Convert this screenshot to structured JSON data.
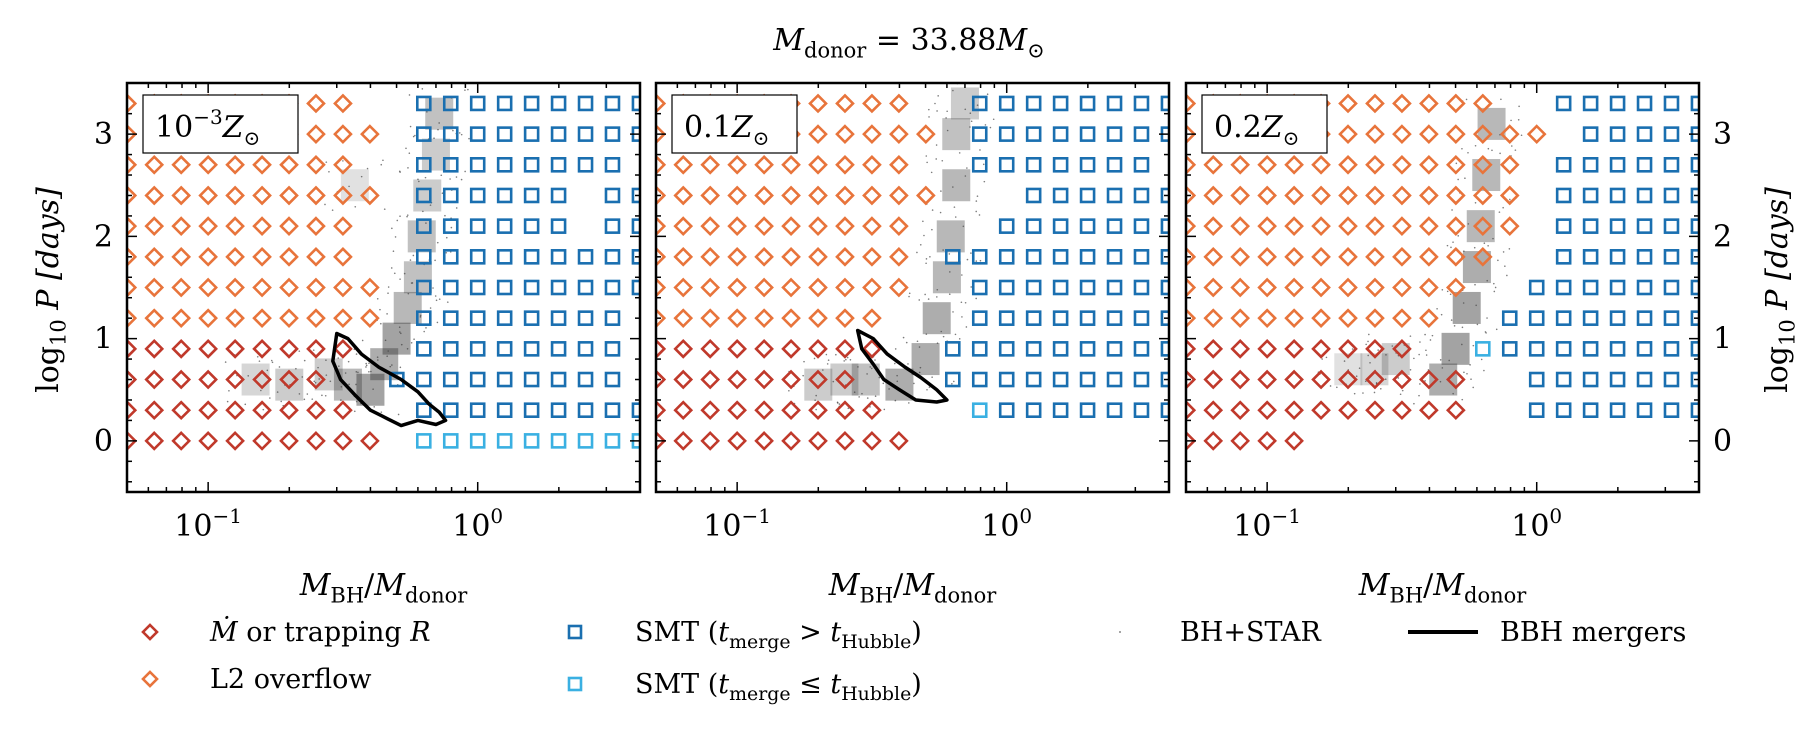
{
  "figure": {
    "title_parts": [
      "M",
      "donor",
      " = 33.88",
      "M",
      "⊙"
    ]
  },
  "axes": {
    "xlabel_parts": [
      "M",
      "BH",
      "/",
      "M",
      "donor"
    ],
    "ylabel_parts": [
      "log",
      "10",
      " P [days]"
    ],
    "x_tick_bases": [
      "10",
      "10"
    ],
    "x_tick_exps": [
      "−1",
      "0"
    ],
    "y_ticks": [
      "0",
      "1",
      "2",
      "3"
    ]
  },
  "colors": {
    "dark_red": "#c0392b",
    "orange": "#e8743b",
    "dark_blue": "#1a6fb0",
    "light_blue": "#3ab0e2",
    "contour": "#000000"
  },
  "legend": {
    "items": [
      {
        "marker": "diamond-dark-red",
        "label_parts": [
          "Ṁ",
          " or trapping ",
          "R"
        ]
      },
      {
        "marker": "diamond-orange",
        "label_parts": [
          "L2 overflow"
        ]
      },
      {
        "marker": "square-dark-blue",
        "label_parts": [
          "SMT (",
          "t",
          "merge",
          " > ",
          "t",
          "Hubble",
          ")"
        ]
      },
      {
        "marker": "square-light-blue",
        "label_parts": [
          "SMT (",
          "t",
          "merge",
          " ≤ ",
          "t",
          "Hubble",
          ")"
        ]
      },
      {
        "marker": "dot-gray",
        "label_parts": [
          "BH+STAR"
        ]
      },
      {
        "marker": "line-black",
        "label_parts": [
          "BBH mergers"
        ]
      }
    ]
  },
  "chart_data": [
    {
      "type": "scatter",
      "panel_label": [
        "10",
        "−3",
        "Z",
        "⊙"
      ],
      "xscale": "log",
      "xlim": [
        0.05,
        4.0
      ],
      "ylim": [
        -0.5,
        3.5
      ],
      "log_q": [
        -1.3,
        -1.2,
        -1.1,
        -1.0,
        -0.9,
        -0.8,
        -0.7,
        -0.6,
        -0.5,
        -0.4,
        -0.3,
        -0.2,
        -0.1,
        0.0,
        0.1,
        0.2,
        0.3,
        0.4,
        0.5,
        0.6
      ],
      "log_p": [
        0.0,
        0.3,
        0.6,
        0.9,
        1.2,
        1.5,
        1.8,
        2.1,
        2.4,
        2.7,
        3.0,
        3.3
      ],
      "grid": [
        "dddddddddd.lllllllll",
        "ddddddddd..sssssssss",
        "dddddddd..sssssssss.",
        "ddddddddd..ssssssss.",
        "oooooooooo.ssssssss.",
        "oooooooooo.sssssssss",
        "ooooooooo..sssssssss",
        "ooooooooo..ssssss.ss",
        "oooooooooo.ssssss.ss",
        "ooooooooo..ssssssss.",
        "oooooooooo.sssssssss",
        "ooooooooo..sssssssss"
      ],
      "bbh_contour": [
        [
          0.3,
          1.05
        ],
        [
          0.33,
          1.0
        ],
        [
          0.37,
          0.85
        ],
        [
          0.43,
          0.72
        ],
        [
          0.52,
          0.6
        ],
        [
          0.6,
          0.48
        ],
        [
          0.66,
          0.36
        ],
        [
          0.72,
          0.28
        ],
        [
          0.76,
          0.2
        ],
        [
          0.7,
          0.16
        ],
        [
          0.6,
          0.2
        ],
        [
          0.52,
          0.15
        ],
        [
          0.46,
          0.22
        ],
        [
          0.4,
          0.3
        ],
        [
          0.35,
          0.45
        ],
        [
          0.31,
          0.6
        ],
        [
          0.29,
          0.78
        ],
        [
          0.3,
          1.05
        ]
      ],
      "density": [
        [
          0.28,
          0.65,
          0.25
        ],
        [
          0.33,
          0.55,
          0.35
        ],
        [
          0.4,
          0.5,
          0.45
        ],
        [
          0.45,
          0.75,
          0.4
        ],
        [
          0.5,
          1.0,
          0.45
        ],
        [
          0.55,
          1.3,
          0.35
        ],
        [
          0.6,
          1.6,
          0.3
        ],
        [
          0.62,
          2.0,
          0.3
        ],
        [
          0.65,
          2.4,
          0.25
        ],
        [
          0.7,
          2.8,
          0.25
        ],
        [
          0.72,
          3.2,
          0.3
        ],
        [
          0.35,
          2.5,
          0.15
        ],
        [
          0.2,
          0.55,
          0.25
        ],
        [
          0.15,
          0.6,
          0.2
        ]
      ]
    },
    {
      "type": "scatter",
      "panel_label": [
        "0.1",
        "",
        "Z",
        "⊙"
      ],
      "xscale": "log",
      "xlim": [
        0.05,
        4.0
      ],
      "ylim": [
        -0.5,
        3.5
      ],
      "log_q": [
        -1.3,
        -1.2,
        -1.1,
        -1.0,
        -0.9,
        -0.8,
        -0.7,
        -0.6,
        -0.5,
        -0.4,
        -0.3,
        -0.2,
        -0.1,
        0.0,
        0.1,
        0.2,
        0.3,
        0.4,
        0.5,
        0.6
      ],
      "log_p": [
        0.0,
        0.3,
        0.6,
        0.9,
        1.2,
        1.5,
        1.8,
        2.1,
        2.4,
        2.7,
        3.0,
        3.3
      ],
      "grid": [
        "dddddddddd..........",
        "ddddddddd...lsssssss",
        "dddddddd...sssssssss",
        "ddddddddd..sssssssss",
        "ooooooooo...ssssssss",
        "oooooooooo..ssssssss",
        "oooooooooo.sssssssss",
        "oooooooooo...sssssss",
        "ooooooooooo...ssssss",
        "oooooooooo..sssssss.",
        "ooooooooooo.ssssssss",
        "oooooooooo..ssssssss"
      ],
      "bbh_contour": [
        [
          0.28,
          1.08
        ],
        [
          0.32,
          1.0
        ],
        [
          0.36,
          0.85
        ],
        [
          0.42,
          0.72
        ],
        [
          0.48,
          0.62
        ],
        [
          0.55,
          0.5
        ],
        [
          0.6,
          0.4
        ],
        [
          0.55,
          0.38
        ],
        [
          0.46,
          0.4
        ],
        [
          0.4,
          0.5
        ],
        [
          0.35,
          0.6
        ],
        [
          0.32,
          0.75
        ],
        [
          0.29,
          0.9
        ],
        [
          0.28,
          1.08
        ]
      ],
      "density": [
        [
          0.3,
          0.6,
          0.3
        ],
        [
          0.4,
          0.55,
          0.4
        ],
        [
          0.5,
          0.8,
          0.4
        ],
        [
          0.55,
          1.2,
          0.4
        ],
        [
          0.6,
          1.6,
          0.35
        ],
        [
          0.62,
          2.0,
          0.35
        ],
        [
          0.65,
          2.5,
          0.35
        ],
        [
          0.65,
          3.0,
          0.3
        ],
        [
          0.7,
          3.3,
          0.25
        ],
        [
          0.2,
          0.55,
          0.25
        ],
        [
          0.25,
          0.6,
          0.25
        ]
      ]
    },
    {
      "type": "scatter",
      "panel_label": [
        "0.2",
        "",
        "Z",
        "⊙"
      ],
      "xscale": "log",
      "xlim": [
        0.05,
        4.0
      ],
      "ylim": [
        -0.5,
        3.5
      ],
      "log_q": [
        -1.3,
        -1.2,
        -1.1,
        -1.0,
        -0.9,
        -0.8,
        -0.7,
        -0.6,
        -0.5,
        -0.4,
        -0.3,
        -0.2,
        -0.1,
        0.0,
        0.1,
        0.2,
        0.3,
        0.4,
        0.5,
        0.6
      ],
      "log_p": [
        0.0,
        0.3,
        0.6,
        0.9,
        1.2,
        1.5,
        1.8,
        2.1,
        2.4,
        2.7,
        3.0,
        3.3
      ],
      "grid": [
        "ddddd...............",
        "ddddddddddd..sssssss",
        "ddddddddddd..sssssss",
        "ddddddddd..lssssssss",
        "oooooooooo..ssssssss",
        "ooooooooooo..sssssss",
        "oooooooooooo..ssssss",
        "ooooooooooooo.ssssss",
        "ooooooooooooo.ssssss",
        "ooooooooooooo.ssssss",
        "oooooooooooooo.sssss",
        "oooooooooooo..ssssss"
      ],
      "bbh_contour": [],
      "density": [
        [
          0.45,
          0.6,
          0.4
        ],
        [
          0.5,
          0.9,
          0.45
        ],
        [
          0.55,
          1.3,
          0.45
        ],
        [
          0.6,
          1.7,
          0.4
        ],
        [
          0.62,
          2.1,
          0.35
        ],
        [
          0.65,
          2.6,
          0.35
        ],
        [
          0.68,
          3.1,
          0.35
        ],
        [
          0.3,
          0.8,
          0.25
        ],
        [
          0.25,
          0.7,
          0.2
        ],
        [
          0.2,
          0.7,
          0.15
        ]
      ]
    }
  ]
}
